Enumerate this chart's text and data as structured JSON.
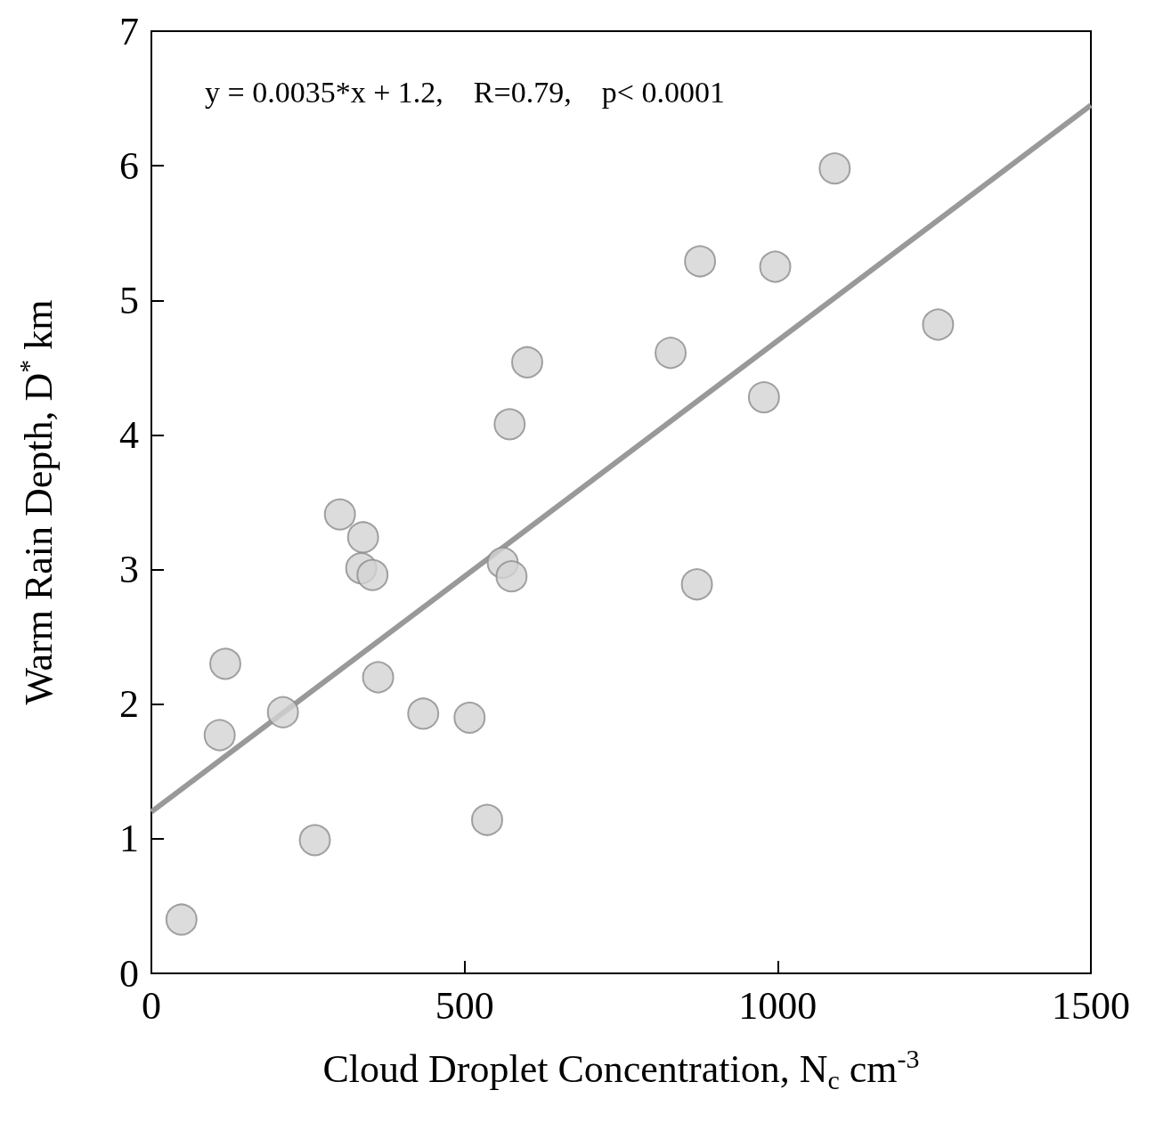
{
  "chart_data": {
    "type": "scatter",
    "xlabel": "Cloud Droplet Concentration, N$_{c}$ cm$^{-3}$",
    "ylabel": "Warm Rain Depth, D$^{*}$ km",
    "annotations": [
      "y = 0.0035*x + 1.2,    R=0.79,    p< 0.0001"
    ],
    "xlim": [
      0,
      1500
    ],
    "xticks": [
      0,
      500,
      1000,
      1500
    ],
    "ylim": [
      0,
      7
    ],
    "yticks": [
      0,
      1,
      2,
      3,
      4,
      5,
      6,
      7
    ],
    "series": [
      {
        "marker": "circle",
        "color": "#d3d3d3",
        "x": [
          48,
          118,
          109,
          210,
          261,
          301,
          338,
          335,
          353,
          362,
          434,
          508,
          536,
          561,
          575,
          572,
          600,
          829,
          876,
          871,
          978,
          996,
          1091,
          1256
        ],
        "values": [
          0.4,
          2.3,
          1.77,
          1.94,
          0.99,
          3.41,
          3.24,
          3.01,
          2.96,
          2.2,
          1.93,
          1.9,
          1.14,
          3.05,
          2.95,
          4.08,
          4.54,
          4.61,
          5.29,
          2.89,
          4.28,
          5.25,
          5.98,
          4.82
        ]
      },
      {
        "type": "line",
        "marker": "none",
        "color": "#999999",
        "x": [
          0,
          1500
        ],
        "values": [
          1.2,
          6.45
        ]
      }
    ]
  }
}
